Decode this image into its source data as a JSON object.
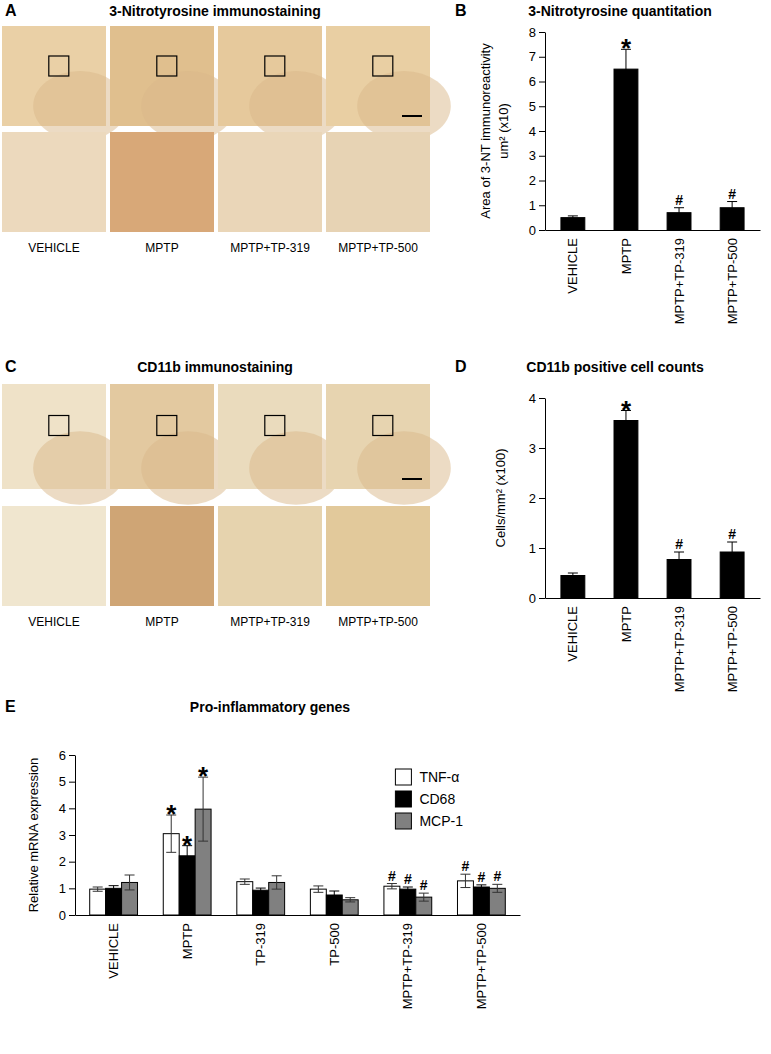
{
  "image_panels": [
    {
      "panel_label": "A",
      "title": "3-Nitrotyrosine immunostaining",
      "labels": [
        "VEHICLE",
        "MPTP",
        "MPTP+TP-319",
        "MPTP+TP-500"
      ]
    },
    {
      "panel_label": "C",
      "title": "CD11b immunostaining",
      "labels": [
        "VEHICLE",
        "MPTP",
        "MPTP+TP-319",
        "MPTP+TP-500"
      ]
    }
  ],
  "chart_data": [
    {
      "type": "bar",
      "panel_label": "B",
      "title": "3-Nitrotyrosine quantitation",
      "ylabel": [
        "Area of 3-NT immunoreactivity",
        "um² (x10)"
      ],
      "categories": [
        "VEHICLE",
        "MPTP",
        "MPTP+TP-319",
        "MPTP+TP-500"
      ],
      "values": [
        0.5,
        6.5,
        0.7,
        0.9
      ],
      "errors": [
        0.07,
        0.8,
        0.2,
        0.25
      ],
      "color": "#000000",
      "ylim": [
        0,
        8
      ],
      "yticks": [
        0,
        1,
        2,
        3,
        4,
        5,
        6,
        7,
        8
      ],
      "grid": false,
      "annotations": [
        {
          "category": "MPTP",
          "text": "*"
        },
        {
          "category": "MPTP+TP-319",
          "text": "#"
        },
        {
          "category": "MPTP+TP-500",
          "text": "#"
        }
      ]
    },
    {
      "type": "bar",
      "panel_label": "D",
      "title": "CD11b positive cell counts",
      "ylabel": [
        "Cells/mm² (x100)"
      ],
      "categories": [
        "VEHICLE",
        "MPTP",
        "MPTP+TP-319",
        "MPTP+TP-500"
      ],
      "values": [
        0.45,
        3.55,
        0.77,
        0.92
      ],
      "errors": [
        0.05,
        0.2,
        0.15,
        0.2
      ],
      "color": "#000000",
      "ylim": [
        0,
        4
      ],
      "yticks": [
        0,
        1,
        2,
        3,
        4
      ],
      "grid": false,
      "annotations": [
        {
          "category": "MPTP",
          "text": "*"
        },
        {
          "category": "MPTP+TP-319",
          "text": "#"
        },
        {
          "category": "MPTP+TP-500",
          "text": "#"
        }
      ]
    },
    {
      "type": "bar",
      "panel_label": "E",
      "title": "Pro-inflammatory genes",
      "ylabel": [
        "Relative mRNA expression"
      ],
      "categories": [
        "VEHICLE",
        "MPTP",
        "TP-319",
        "TP-500",
        "MPTP+TP-319",
        "MPTP+TP-500"
      ],
      "series": [
        {
          "name": "TNF-α",
          "color": "#ffffff",
          "values": [
            0.97,
            3.05,
            1.25,
            0.97,
            1.08,
            1.28
          ],
          "errors": [
            0.08,
            0.7,
            0.1,
            0.12,
            0.1,
            0.25
          ]
        },
        {
          "name": "CD68",
          "color": "#000000",
          "values": [
            1.0,
            2.22,
            0.93,
            0.75,
            0.97,
            1.05
          ],
          "errors": [
            0.1,
            0.38,
            0.08,
            0.15,
            0.08,
            0.08
          ]
        },
        {
          "name": "MCP-1",
          "color": "#808080",
          "values": [
            1.22,
            3.97,
            1.22,
            0.57,
            0.67,
            1.0
          ],
          "errors": [
            0.28,
            1.2,
            0.25,
            0.08,
            0.15,
            0.15
          ]
        }
      ],
      "ylim": [
        0,
        6
      ],
      "yticks": [
        0,
        1,
        2,
        3,
        4,
        5,
        6
      ],
      "grid": false,
      "legend": "top-right",
      "annotations": [
        {
          "category": "MPTP",
          "series": "TNF-α",
          "text": "*"
        },
        {
          "category": "MPTP",
          "series": "CD68",
          "text": "*"
        },
        {
          "category": "MPTP",
          "series": "MCP-1",
          "text": "*"
        },
        {
          "category": "MPTP+TP-319",
          "series": "TNF-α",
          "text": "#"
        },
        {
          "category": "MPTP+TP-319",
          "series": "CD68",
          "text": "#"
        },
        {
          "category": "MPTP+TP-319",
          "series": "MCP-1",
          "text": "#"
        },
        {
          "category": "MPTP+TP-500",
          "series": "TNF-α",
          "text": "#"
        },
        {
          "category": "MPTP+TP-500",
          "series": "CD68",
          "text": "#"
        },
        {
          "category": "MPTP+TP-500",
          "series": "MCP-1",
          "text": "#"
        }
      ]
    }
  ]
}
